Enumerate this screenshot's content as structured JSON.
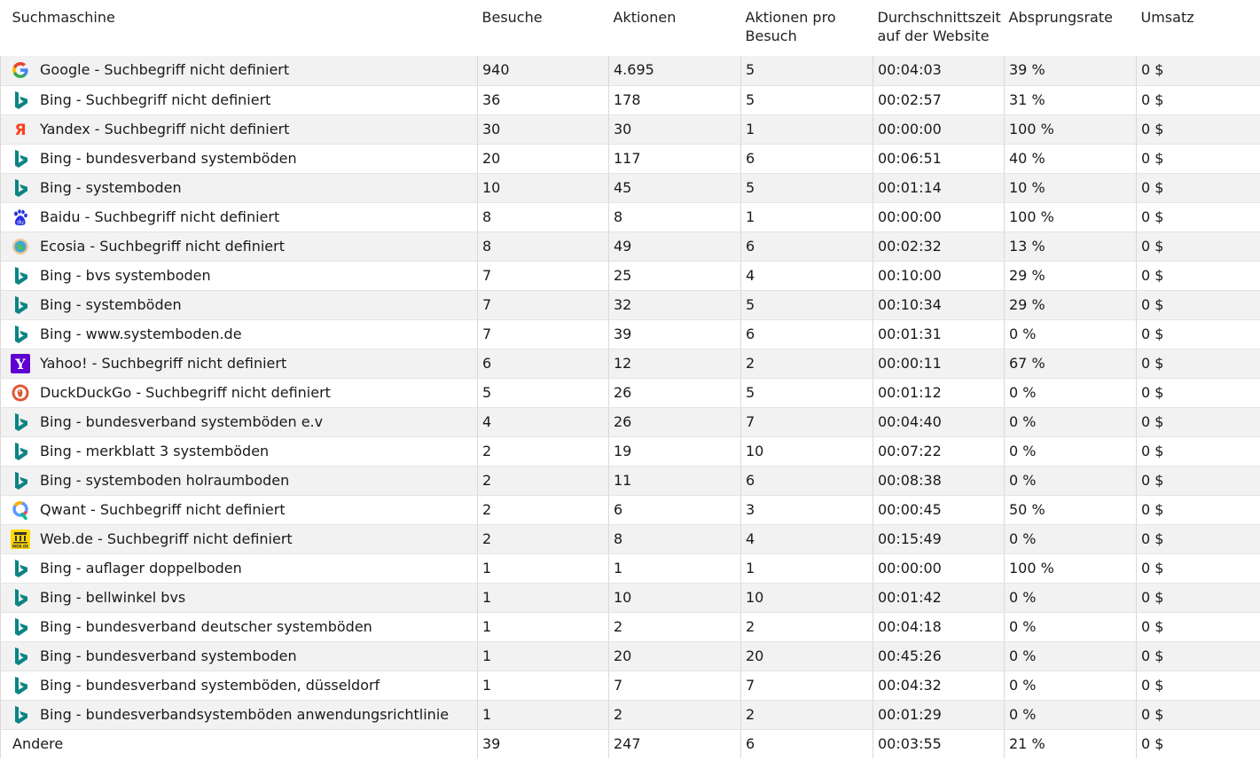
{
  "columns": {
    "label": "Suchmaschine",
    "visits": "Besuche",
    "actions": "Aktionen",
    "actions_per_visit": "Aktionen pro Besuch",
    "avg_time": "Durchschnittszeit auf der Website",
    "bounce_rate": "Absprungsrate",
    "revenue": "Umsatz"
  },
  "rows": [
    {
      "icon": "google-icon",
      "engine": "Google",
      "keyword": "Suchbegriff nicht definiert",
      "label": "Google - Suchbegriff nicht definiert",
      "visits": "940",
      "actions": "4.695",
      "actions_per_visit": "5",
      "avg_time": "00:04:03",
      "bounce_rate": "39 %",
      "revenue": "0 $"
    },
    {
      "icon": "bing-icon",
      "engine": "Bing",
      "keyword": "Suchbegriff nicht definiert",
      "label": "Bing - Suchbegriff nicht definiert",
      "visits": "36",
      "actions": "178",
      "actions_per_visit": "5",
      "avg_time": "00:02:57",
      "bounce_rate": "31 %",
      "revenue": "0 $"
    },
    {
      "icon": "yandex-icon",
      "engine": "Yandex",
      "keyword": "Suchbegriff nicht definiert",
      "label": "Yandex - Suchbegriff nicht definiert",
      "visits": "30",
      "actions": "30",
      "actions_per_visit": "1",
      "avg_time": "00:00:00",
      "bounce_rate": "100 %",
      "revenue": "0 $"
    },
    {
      "icon": "bing-icon",
      "engine": "Bing",
      "keyword": "bundesverband systemböden",
      "label": "Bing - bundesverband systemböden",
      "visits": "20",
      "actions": "117",
      "actions_per_visit": "6",
      "avg_time": "00:06:51",
      "bounce_rate": "40 %",
      "revenue": "0 $"
    },
    {
      "icon": "bing-icon",
      "engine": "Bing",
      "keyword": "systemboden",
      "label": "Bing - systemboden",
      "visits": "10",
      "actions": "45",
      "actions_per_visit": "5",
      "avg_time": "00:01:14",
      "bounce_rate": "10 %",
      "revenue": "0 $"
    },
    {
      "icon": "baidu-icon",
      "engine": "Baidu",
      "keyword": "Suchbegriff nicht definiert",
      "label": "Baidu - Suchbegriff nicht definiert",
      "visits": "8",
      "actions": "8",
      "actions_per_visit": "1",
      "avg_time": "00:00:00",
      "bounce_rate": "100 %",
      "revenue": "0 $"
    },
    {
      "icon": "ecosia-icon",
      "engine": "Ecosia",
      "keyword": "Suchbegriff nicht definiert",
      "label": "Ecosia - Suchbegriff nicht definiert",
      "visits": "8",
      "actions": "49",
      "actions_per_visit": "6",
      "avg_time": "00:02:32",
      "bounce_rate": "13 %",
      "revenue": "0 $"
    },
    {
      "icon": "bing-icon",
      "engine": "Bing",
      "keyword": "bvs systemboden",
      "label": "Bing - bvs systemboden",
      "visits": "7",
      "actions": "25",
      "actions_per_visit": "4",
      "avg_time": "00:10:00",
      "bounce_rate": "29 %",
      "revenue": "0 $"
    },
    {
      "icon": "bing-icon",
      "engine": "Bing",
      "keyword": "systemböden",
      "label": "Bing - systemböden",
      "visits": "7",
      "actions": "32",
      "actions_per_visit": "5",
      "avg_time": "00:10:34",
      "bounce_rate": "29 %",
      "revenue": "0 $"
    },
    {
      "icon": "bing-icon",
      "engine": "Bing",
      "keyword": "www.systemboden.de",
      "label": "Bing - www.systemboden.de",
      "visits": "7",
      "actions": "39",
      "actions_per_visit": "6",
      "avg_time": "00:01:31",
      "bounce_rate": "0 %",
      "revenue": "0 $"
    },
    {
      "icon": "yahoo-icon",
      "engine": "Yahoo!",
      "keyword": "Suchbegriff nicht definiert",
      "label": "Yahoo! - Suchbegriff nicht definiert",
      "visits": "6",
      "actions": "12",
      "actions_per_visit": "2",
      "avg_time": "00:00:11",
      "bounce_rate": "67 %",
      "revenue": "0 $"
    },
    {
      "icon": "duckduckgo-icon",
      "engine": "DuckDuckGo",
      "keyword": "Suchbegriff nicht definiert",
      "label": "DuckDuckGo - Suchbegriff nicht definiert",
      "visits": "5",
      "actions": "26",
      "actions_per_visit": "5",
      "avg_time": "00:01:12",
      "bounce_rate": "0 %",
      "revenue": "0 $"
    },
    {
      "icon": "bing-icon",
      "engine": "Bing",
      "keyword": "bundesverband systemböden e.v",
      "label": "Bing - bundesverband systemböden e.v",
      "visits": "4",
      "actions": "26",
      "actions_per_visit": "7",
      "avg_time": "00:04:40",
      "bounce_rate": "0 %",
      "revenue": "0 $"
    },
    {
      "icon": "bing-icon",
      "engine": "Bing",
      "keyword": "merkblatt 3 systemböden",
      "label": "Bing - merkblatt 3 systemböden",
      "visits": "2",
      "actions": "19",
      "actions_per_visit": "10",
      "avg_time": "00:07:22",
      "bounce_rate": "0 %",
      "revenue": "0 $"
    },
    {
      "icon": "bing-icon",
      "engine": "Bing",
      "keyword": "systemboden holraumboden",
      "label": "Bing - systemboden holraumboden",
      "visits": "2",
      "actions": "11",
      "actions_per_visit": "6",
      "avg_time": "00:08:38",
      "bounce_rate": "0 %",
      "revenue": "0 $"
    },
    {
      "icon": "qwant-icon",
      "engine": "Qwant",
      "keyword": "Suchbegriff nicht definiert",
      "label": "Qwant - Suchbegriff nicht definiert",
      "visits": "2",
      "actions": "6",
      "actions_per_visit": "3",
      "avg_time": "00:00:45",
      "bounce_rate": "50 %",
      "revenue": "0 $"
    },
    {
      "icon": "webde-icon",
      "engine": "Web.de",
      "keyword": "Suchbegriff nicht definiert",
      "label": "Web.de - Suchbegriff nicht definiert",
      "visits": "2",
      "actions": "8",
      "actions_per_visit": "4",
      "avg_time": "00:15:49",
      "bounce_rate": "0 %",
      "revenue": "0 $"
    },
    {
      "icon": "bing-icon",
      "engine": "Bing",
      "keyword": "auflager doppelboden",
      "label": "Bing - auflager doppelboden",
      "visits": "1",
      "actions": "1",
      "actions_per_visit": "1",
      "avg_time": "00:00:00",
      "bounce_rate": "100 %",
      "revenue": "0 $"
    },
    {
      "icon": "bing-icon",
      "engine": "Bing",
      "keyword": "bellwinkel bvs",
      "label": "Bing - bellwinkel bvs",
      "visits": "1",
      "actions": "10",
      "actions_per_visit": "10",
      "avg_time": "00:01:42",
      "bounce_rate": "0 %",
      "revenue": "0 $"
    },
    {
      "icon": "bing-icon",
      "engine": "Bing",
      "keyword": "bundesverband deutscher systemböden",
      "label": "Bing - bundesverband deutscher systemböden",
      "visits": "1",
      "actions": "2",
      "actions_per_visit": "2",
      "avg_time": "00:04:18",
      "bounce_rate": "0 %",
      "revenue": "0 $"
    },
    {
      "icon": "bing-icon",
      "engine": "Bing",
      "keyword": "bundesverband systemboden",
      "label": "Bing - bundesverband systemboden",
      "visits": "1",
      "actions": "20",
      "actions_per_visit": "20",
      "avg_time": "00:45:26",
      "bounce_rate": "0 %",
      "revenue": "0 $"
    },
    {
      "icon": "bing-icon",
      "engine": "Bing",
      "keyword": "bundesverband systemböden, düsseldorf",
      "label": "Bing - bundesverband systemböden, düsseldorf",
      "visits": "1",
      "actions": "7",
      "actions_per_visit": "7",
      "avg_time": "00:04:32",
      "bounce_rate": "0 %",
      "revenue": "0 $"
    },
    {
      "icon": "bing-icon",
      "engine": "Bing",
      "keyword": "bundesverbandsystemböden anwendungsrichtlinie",
      "label": "Bing - bundesverbandsystemböden anwendungsrichtlinie",
      "visits": "1",
      "actions": "2",
      "actions_per_visit": "2",
      "avg_time": "00:01:29",
      "bounce_rate": "0 %",
      "revenue": "0 $"
    }
  ],
  "other": {
    "label": "Andere",
    "visits": "39",
    "actions": "247",
    "actions_per_visit": "6",
    "avg_time": "00:03:55",
    "bounce_rate": "21 %",
    "revenue": "0 $"
  },
  "colors": {
    "row_alt": "#f2f2f2",
    "border": "#d9d9d9",
    "bing": "#0c8484",
    "yandex": "#fc3f1d",
    "yahoo": "#5f01d1",
    "duckduckgo": "#de5833",
    "baidu": "#2932e1"
  }
}
